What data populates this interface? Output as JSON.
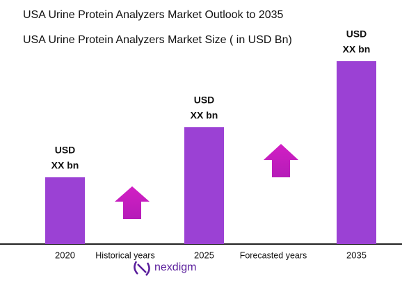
{
  "chart_data": {
    "type": "bar",
    "title": "USA Urine Protein Analyzers Market Outlook to 2035",
    "subtitle": "USA Urine Protein Analyzers Market Size  ( in USD Bn)",
    "categories": [
      "2020",
      "2025",
      "2035"
    ],
    "values": [
      96,
      168,
      263
    ],
    "value_labels": [
      [
        "USD",
        "XX bn"
      ],
      [
        "USD",
        "XX bn"
      ],
      [
        "USD",
        "XX bn"
      ]
    ],
    "color": "#9b41d4",
    "annotations": [
      "Historical years",
      "Forecasted years"
    ]
  },
  "brand": "nexdigm"
}
